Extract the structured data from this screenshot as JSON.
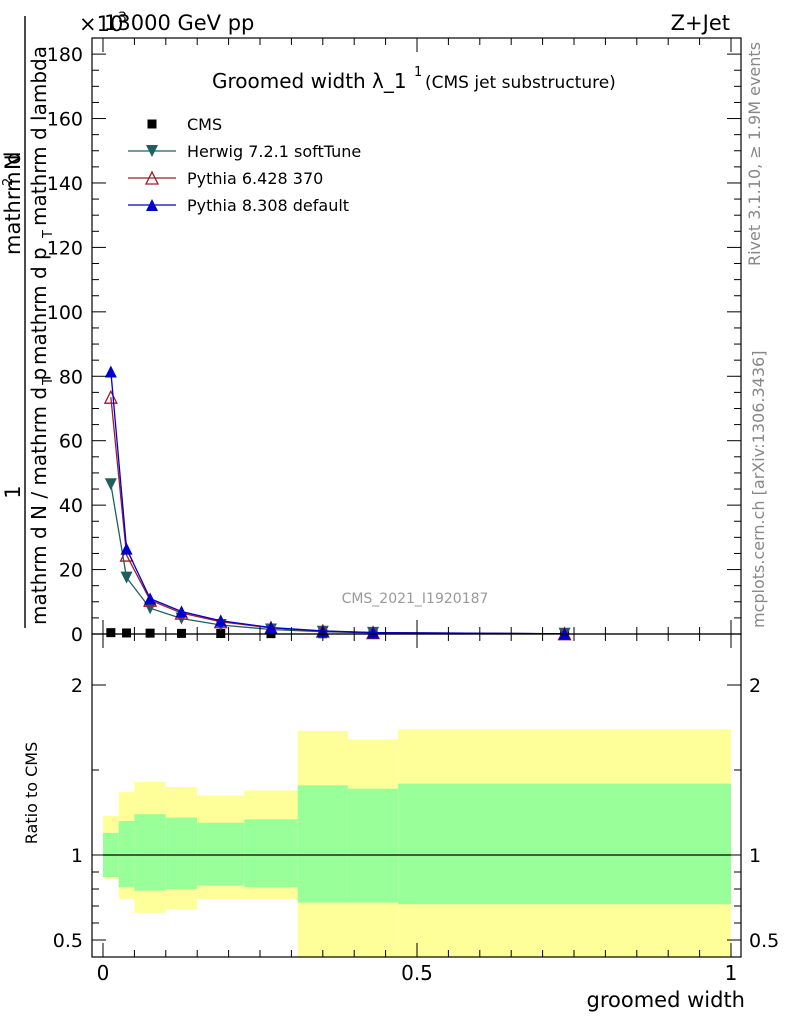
{
  "header": {
    "left": "13000 GeV pp",
    "right": "Z+Jet",
    "exponent_prefix": "×10",
    "exponent_sup": "3"
  },
  "side_labels": {
    "top": "Rivet 3.1.10, ≥ 1.9M events",
    "bottom": "mcplots.cern.ch [arXiv:1306.3436]"
  },
  "watermark": "CMS_2021_I1920187",
  "chart_data": [
    {
      "type": "line",
      "title_main": "Groomed width",
      "title_sym": "λ_1",
      "title_sup": "1",
      "title_note": "(CMS jet substructure)",
      "ylabel": {
        "num": "mathrm d",
        "num_sup": "2",
        "num_tail": "N",
        "den_a": "mathrm d p",
        "den_b": "mathrm d lambda",
        "sub_t": "T",
        "pre_num": "1",
        "pre_den": "mathrm d N / mathrm d p",
        "pre_sub": "T"
      },
      "ylim": [
        0,
        185000
      ],
      "yticks": [
        "0",
        "20",
        "40",
        "60",
        "80",
        "100",
        "120",
        "140",
        "160",
        "180"
      ],
      "xlim": [
        -0.01,
        1.0
      ],
      "legend_position": "top-left",
      "series": [
        {
          "name": "CMS",
          "color": "#000000",
          "marker": "square",
          "x": [
            0.0125,
            0.0375,
            0.075,
            0.125,
            0.1875,
            0.2675,
            0.35,
            0.43,
            0.735
          ],
          "y": [
            420,
            320,
            260,
            200,
            160,
            110,
            80,
            60,
            30
          ]
        },
        {
          "name": "Herwig 7.2.1 softTune",
          "color": "#1f5f5f",
          "marker": "triangle-down",
          "x": [
            0.0125,
            0.0375,
            0.075,
            0.125,
            0.1875,
            0.2675,
            0.35,
            0.43,
            0.735
          ],
          "y": [
            46500,
            17500,
            8000,
            4800,
            2800,
            1400,
            700,
            350,
            60
          ]
        },
        {
          "name": "Pythia 6.428 370",
          "color": "#a01c2a",
          "marker": "triangle-up-open",
          "x": [
            0.0125,
            0.0375,
            0.075,
            0.125,
            0.1875,
            0.2675,
            0.35,
            0.43,
            0.735
          ],
          "y": [
            73500,
            24500,
            10500,
            6500,
            3800,
            1900,
            900,
            420,
            70
          ]
        },
        {
          "name": "Pythia 8.308 default",
          "color": "#0000cc",
          "marker": "triangle-up",
          "x": [
            0.0125,
            0.0375,
            0.075,
            0.125,
            0.1875,
            0.2675,
            0.35,
            0.43,
            0.735
          ],
          "y": [
            81500,
            26500,
            11000,
            7000,
            4100,
            2000,
            950,
            450,
            80
          ]
        }
      ]
    },
    {
      "type": "area",
      "ylabel": "Ratio to CMS",
      "xlabel": "groomed width",
      "ylim": [
        0.4,
        2.3
      ],
      "yticks": [
        "0.5",
        "1",
        "2"
      ],
      "xticks": [
        "0",
        "0.5",
        "1"
      ],
      "bands": {
        "edges": [
          0.0,
          0.025,
          0.05,
          0.1,
          0.15,
          0.225,
          0.31,
          0.39,
          0.47,
          1.0
        ],
        "yellow_hi": [
          1.23,
          1.37,
          1.43,
          1.4,
          1.35,
          1.38,
          1.73,
          1.68,
          1.74
        ],
        "yellow_lo": [
          0.86,
          0.74,
          0.66,
          0.68,
          0.74,
          0.74,
          0.4,
          0.4,
          0.4
        ],
        "green_hi": [
          1.13,
          1.2,
          1.24,
          1.22,
          1.19,
          1.21,
          1.41,
          1.39,
          1.42
        ],
        "green_lo": [
          0.87,
          0.81,
          0.79,
          0.8,
          0.82,
          0.81,
          0.72,
          0.72,
          0.71
        ],
        "yellow_color": "#ffff99",
        "green_color": "#99ff99"
      }
    }
  ]
}
